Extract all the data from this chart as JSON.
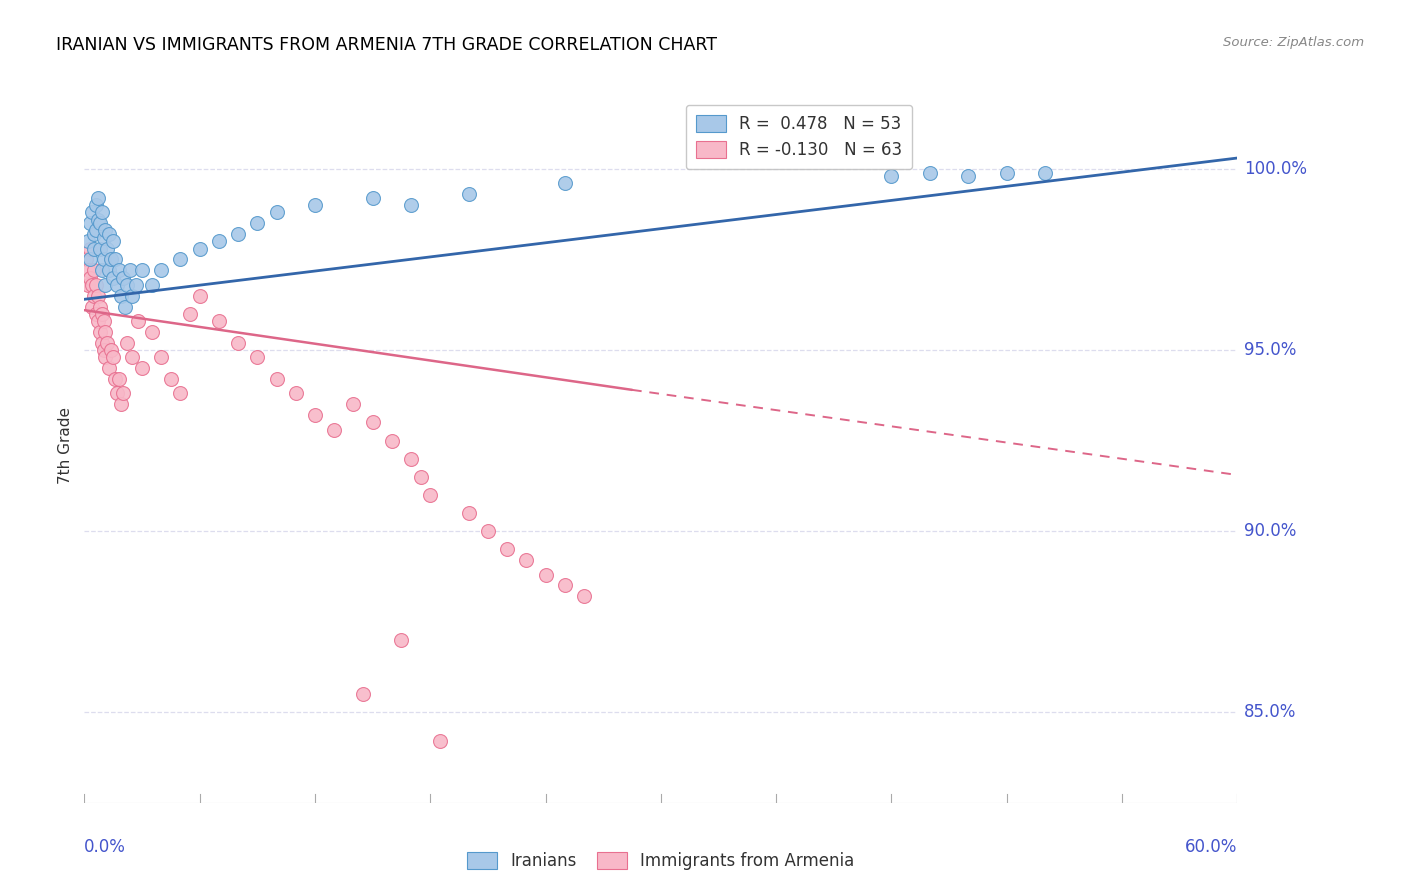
{
  "title": "IRANIAN VS IMMIGRANTS FROM ARMENIA 7TH GRADE CORRELATION CHART",
  "source": "Source: ZipAtlas.com",
  "ylabel": "7th Grade",
  "xlim": [
    0.0,
    0.6
  ],
  "ylim": [
    0.825,
    1.022
  ],
  "yticks": [
    0.85,
    0.9,
    0.95,
    1.0
  ],
  "ytick_labels": [
    "85.0%",
    "90.0%",
    "95.0%",
    "100.0%"
  ],
  "legend_blue_r": "R =  0.478",
  "legend_blue_n": "N = 53",
  "legend_pink_r": "R = -0.130",
  "legend_pink_n": "N = 63",
  "blue_color": "#a8c8e8",
  "blue_edge_color": "#5599cc",
  "pink_color": "#f8b8c8",
  "pink_edge_color": "#e87090",
  "blue_line_color": "#3366aa",
  "pink_line_color": "#dd6688",
  "axis_label_color": "#4455cc",
  "grid_color": "#ddddee",
  "blue_trend": [
    0.0,
    0.964,
    0.6,
    1.003
  ],
  "pink_trend_solid": [
    0.0,
    0.961,
    0.285,
    0.939
  ],
  "pink_trend_dash": [
    0.285,
    0.939,
    0.6,
    0.9155
  ],
  "iranians_x": [
    0.002,
    0.003,
    0.003,
    0.004,
    0.005,
    0.005,
    0.006,
    0.006,
    0.007,
    0.007,
    0.008,
    0.008,
    0.009,
    0.009,
    0.01,
    0.01,
    0.011,
    0.011,
    0.012,
    0.013,
    0.013,
    0.014,
    0.015,
    0.015,
    0.016,
    0.017,
    0.018,
    0.019,
    0.02,
    0.021,
    0.022,
    0.024,
    0.025,
    0.027,
    0.03,
    0.035,
    0.04,
    0.05,
    0.06,
    0.07,
    0.08,
    0.09,
    0.1,
    0.12,
    0.15,
    0.17,
    0.2,
    0.25,
    0.42,
    0.44,
    0.46,
    0.48,
    0.5
  ],
  "iranians_y": [
    0.98,
    0.985,
    0.975,
    0.988,
    0.982,
    0.978,
    0.99,
    0.983,
    0.992,
    0.986,
    0.985,
    0.978,
    0.988,
    0.972,
    0.981,
    0.975,
    0.983,
    0.968,
    0.978,
    0.972,
    0.982,
    0.975,
    0.98,
    0.97,
    0.975,
    0.968,
    0.972,
    0.965,
    0.97,
    0.962,
    0.968,
    0.972,
    0.965,
    0.968,
    0.972,
    0.968,
    0.972,
    0.975,
    0.978,
    0.98,
    0.982,
    0.985,
    0.988,
    0.99,
    0.992,
    0.99,
    0.993,
    0.996,
    0.998,
    0.999,
    0.998,
    0.999,
    0.999
  ],
  "armenia_x": [
    0.001,
    0.002,
    0.002,
    0.003,
    0.003,
    0.004,
    0.004,
    0.005,
    0.005,
    0.006,
    0.006,
    0.007,
    0.007,
    0.008,
    0.008,
    0.009,
    0.009,
    0.01,
    0.01,
    0.011,
    0.011,
    0.012,
    0.013,
    0.014,
    0.015,
    0.016,
    0.017,
    0.018,
    0.019,
    0.02,
    0.022,
    0.025,
    0.028,
    0.03,
    0.035,
    0.04,
    0.045,
    0.05,
    0.055,
    0.06,
    0.07,
    0.08,
    0.09,
    0.1,
    0.11,
    0.12,
    0.13,
    0.14,
    0.15,
    0.16,
    0.17,
    0.175,
    0.18,
    0.2,
    0.21,
    0.22,
    0.23,
    0.24,
    0.25,
    0.26,
    0.165,
    0.145,
    0.185
  ],
  "armenia_y": [
    0.975,
    0.972,
    0.968,
    0.978,
    0.97,
    0.968,
    0.962,
    0.972,
    0.965,
    0.968,
    0.96,
    0.965,
    0.958,
    0.962,
    0.955,
    0.96,
    0.952,
    0.958,
    0.95,
    0.955,
    0.948,
    0.952,
    0.945,
    0.95,
    0.948,
    0.942,
    0.938,
    0.942,
    0.935,
    0.938,
    0.952,
    0.948,
    0.958,
    0.945,
    0.955,
    0.948,
    0.942,
    0.938,
    0.96,
    0.965,
    0.958,
    0.952,
    0.948,
    0.942,
    0.938,
    0.932,
    0.928,
    0.935,
    0.93,
    0.925,
    0.92,
    0.915,
    0.91,
    0.905,
    0.9,
    0.895,
    0.892,
    0.888,
    0.885,
    0.882,
    0.87,
    0.855,
    0.842
  ]
}
